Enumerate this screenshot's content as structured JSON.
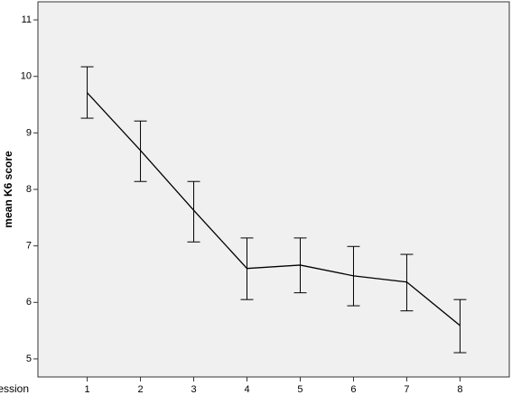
{
  "chart_data": {
    "type": "line",
    "y_label": "mean K6 score",
    "x_label": "session",
    "categories": [
      "1",
      "2",
      "3",
      "4",
      "5",
      "6",
      "7",
      "8"
    ],
    "series": [
      {
        "color": "#000000",
        "values": [
          9.71,
          8.69,
          7.63,
          6.6,
          6.66,
          6.47,
          6.36,
          5.59
        ],
        "lower": [
          9.26,
          8.14,
          7.07,
          6.05,
          6.17,
          5.94,
          5.85,
          5.11
        ],
        "upper": [
          10.17,
          9.21,
          8.14,
          7.14,
          7.14,
          6.99,
          6.85,
          6.05
        ]
      }
    ],
    "ylim": [
      4.68,
      11.32
    ],
    "yticks": [
      5,
      6,
      7,
      8,
      9,
      10,
      11
    ],
    "background": "#f0f0f0"
  }
}
